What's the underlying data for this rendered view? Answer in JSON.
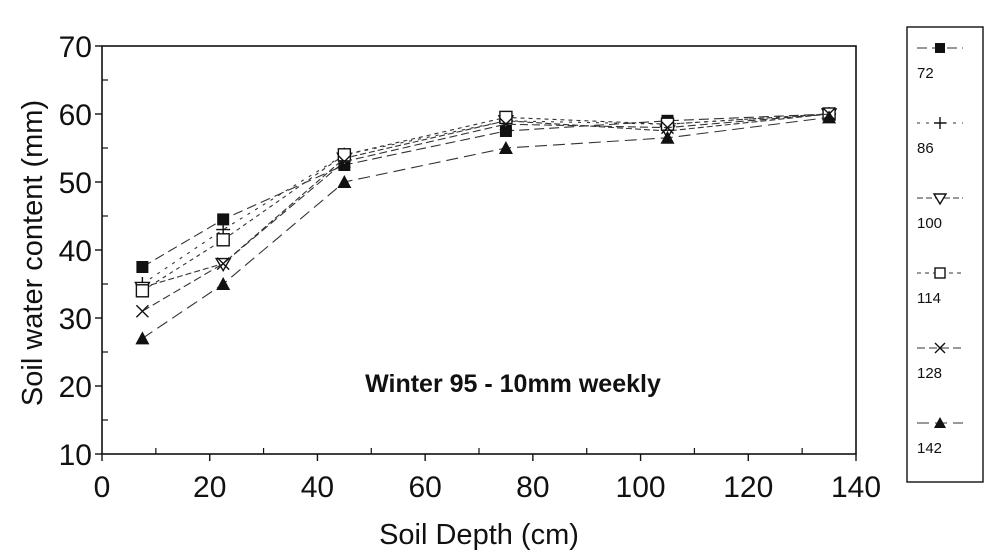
{
  "chart_data": {
    "type": "line",
    "title": "",
    "annotation": "Winter 95 - 10mm weekly",
    "xlabel": "Soil Depth (cm)",
    "ylabel": "Soil water content (mm)",
    "xlim": [
      0,
      140
    ],
    "ylim": [
      10,
      70
    ],
    "xticks": [
      0,
      20,
      40,
      60,
      80,
      100,
      120,
      140
    ],
    "yticks": [
      10,
      20,
      30,
      40,
      50,
      60,
      70
    ],
    "grid": false,
    "legend_position": "right",
    "x": [
      7.5,
      22.5,
      45,
      75,
      105,
      135
    ],
    "series": [
      {
        "name": "72",
        "marker": "filled-square",
        "values": [
          37.5,
          44.5,
          52.5,
          57.5,
          59,
          60
        ]
      },
      {
        "name": "86",
        "marker": "plus",
        "values": [
          35,
          43,
          54,
          59,
          58.5,
          60
        ]
      },
      {
        "name": "100",
        "marker": "open-triangle-down",
        "values": [
          34.5,
          38,
          53.5,
          59,
          57.5,
          60
        ]
      },
      {
        "name": "114",
        "marker": "open-square",
        "values": [
          34,
          41.5,
          54,
          59.5,
          58.5,
          60
        ]
      },
      {
        "name": "128",
        "marker": "cross",
        "values": [
          31,
          38,
          53,
          58.5,
          58,
          60
        ]
      },
      {
        "name": "142",
        "marker": "filled-triangle-up",
        "values": [
          27,
          35,
          50,
          55,
          56.5,
          59.5
        ]
      }
    ]
  }
}
